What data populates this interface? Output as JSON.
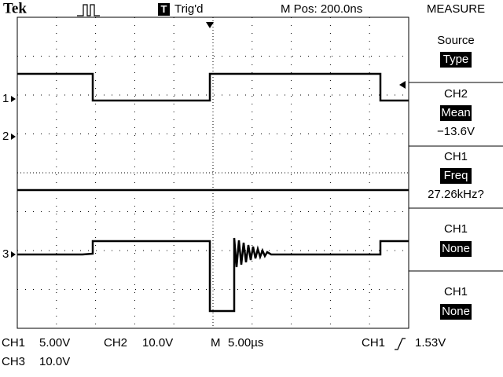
{
  "header": {
    "brand": "Tek",
    "trigger_icon": "T",
    "trigger_status": "Trig'd",
    "position": "M Pos: 200.0ns",
    "menu_title": "MEASURE"
  },
  "channel_markers": [
    "1",
    "2",
    "3"
  ],
  "menu": [
    {
      "label": "Source",
      "selected": "Type"
    },
    {
      "label": "CH2",
      "selected": "Mean",
      "reading": "−13.6V"
    },
    {
      "label": "CH1",
      "selected": "Freq",
      "reading": "27.26kHz?"
    },
    {
      "label": "CH1",
      "selected": "None"
    },
    {
      "label": "CH1",
      "selected": "None"
    }
  ],
  "footer": {
    "ch1_name": "CH1",
    "ch1_scale": "5.00V",
    "ch2_name": "CH2",
    "ch2_scale": "10.0V",
    "time_name": "M",
    "time_scale": "5.00µs",
    "trigger_source": "CH1",
    "trigger_level": "1.53V",
    "ch3_name": "CH3",
    "ch3_scale": "10.0V"
  }
}
